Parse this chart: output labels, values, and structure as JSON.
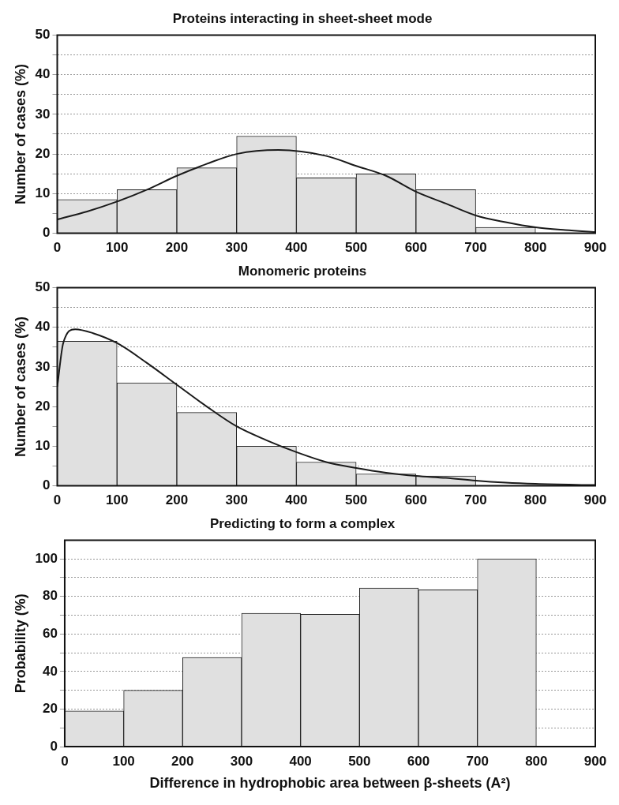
{
  "chart_data": [
    {
      "type": "histogram",
      "title": "Proteins interacting in sheet-sheet mode",
      "ylabel": "Number of cases (%)",
      "bins": [
        0,
        100,
        200,
        300,
        400,
        500,
        600,
        700,
        800
      ],
      "values": [
        8.5,
        11,
        16.5,
        24.5,
        14,
        15,
        11,
        1.5
      ],
      "color": "#e0e0e0",
      "series": [
        {
          "type": "line",
          "color": "#1a1a1a",
          "x": [
            0,
            50,
            100,
            150,
            200,
            250,
            300,
            370,
            450,
            500,
            550,
            600,
            650,
            700,
            750,
            800,
            850,
            900
          ],
          "values": [
            3.5,
            5.5,
            8,
            11,
            14.5,
            17.5,
            20,
            21,
            19.5,
            17,
            14.5,
            10.5,
            7.5,
            4.5,
            2.8,
            1.5,
            0.8,
            0.3
          ]
        }
      ],
      "xlim": [
        0,
        900
      ],
      "xticks": [
        0,
        100,
        200,
        300,
        400,
        500,
        600,
        700,
        800,
        900
      ],
      "ylim": [
        0,
        50
      ],
      "yticks": [
        0,
        {
          "value": 5,
          "label": null
        },
        10,
        {
          "value": 15,
          "label": null
        },
        20,
        {
          "value": 25,
          "label": null
        },
        30,
        {
          "value": 35,
          "label": null
        },
        40,
        {
          "value": 45,
          "label": null
        },
        50
      ],
      "grid": "y"
    },
    {
      "type": "histogram",
      "title": "Monomeric proteins",
      "ylabel": "Number of cases (%)",
      "bins": [
        0,
        100,
        200,
        300,
        400,
        500,
        600,
        700
      ],
      "values": [
        36.5,
        26,
        18.5,
        10,
        6,
        3,
        2.5
      ],
      "color": "#e0e0e0",
      "series": [
        {
          "type": "line",
          "color": "#1a1a1a",
          "x": [
            0,
            10,
            30,
            60,
            100,
            150,
            200,
            250,
            300,
            350,
            400,
            450,
            500,
            550,
            600,
            650,
            700,
            750,
            800,
            900
          ],
          "values": [
            25,
            36,
            39.5,
            38.5,
            36,
            31,
            25.5,
            20,
            15,
            11.5,
            8.5,
            6,
            4.5,
            3.3,
            2.5,
            2,
            1.3,
            0.8,
            0.5,
            0.2
          ]
        }
      ],
      "xlim": [
        0,
        900
      ],
      "xticks": [
        0,
        100,
        200,
        300,
        400,
        500,
        600,
        700,
        800,
        900
      ],
      "ylim": [
        0,
        50
      ],
      "yticks": [
        0,
        {
          "value": 5,
          "label": null
        },
        10,
        {
          "value": 15,
          "label": null
        },
        20,
        {
          "value": 25,
          "label": null
        },
        30,
        {
          "value": 35,
          "label": null
        },
        40,
        {
          "value": 45,
          "label": null
        },
        50
      ],
      "grid": "y"
    },
    {
      "type": "histogram",
      "title": "Predicting to form a complex",
      "ylabel": "Probability (%)",
      "xlabel": "Difference in hydrophobic area between β-sheets (A²)",
      "bins": [
        0,
        100,
        200,
        300,
        400,
        500,
        600,
        700,
        800
      ],
      "values": [
        19,
        30,
        47.5,
        71,
        70.5,
        84.5,
        83.5,
        100
      ],
      "color": "#e0e0e0",
      "xlim": [
        0,
        900
      ],
      "xticks": [
        0,
        100,
        200,
        300,
        400,
        500,
        600,
        700,
        800,
        900
      ],
      "ylim": [
        0,
        110
      ],
      "yticks": [
        0,
        {
          "value": 10,
          "label": null
        },
        20,
        {
          "value": 30,
          "label": null
        },
        40,
        {
          "value": 50,
          "label": null
        },
        60,
        {
          "value": 70,
          "label": null
        },
        80,
        {
          "value": 90,
          "label": null
        },
        100
      ],
      "grid": "y"
    }
  ]
}
